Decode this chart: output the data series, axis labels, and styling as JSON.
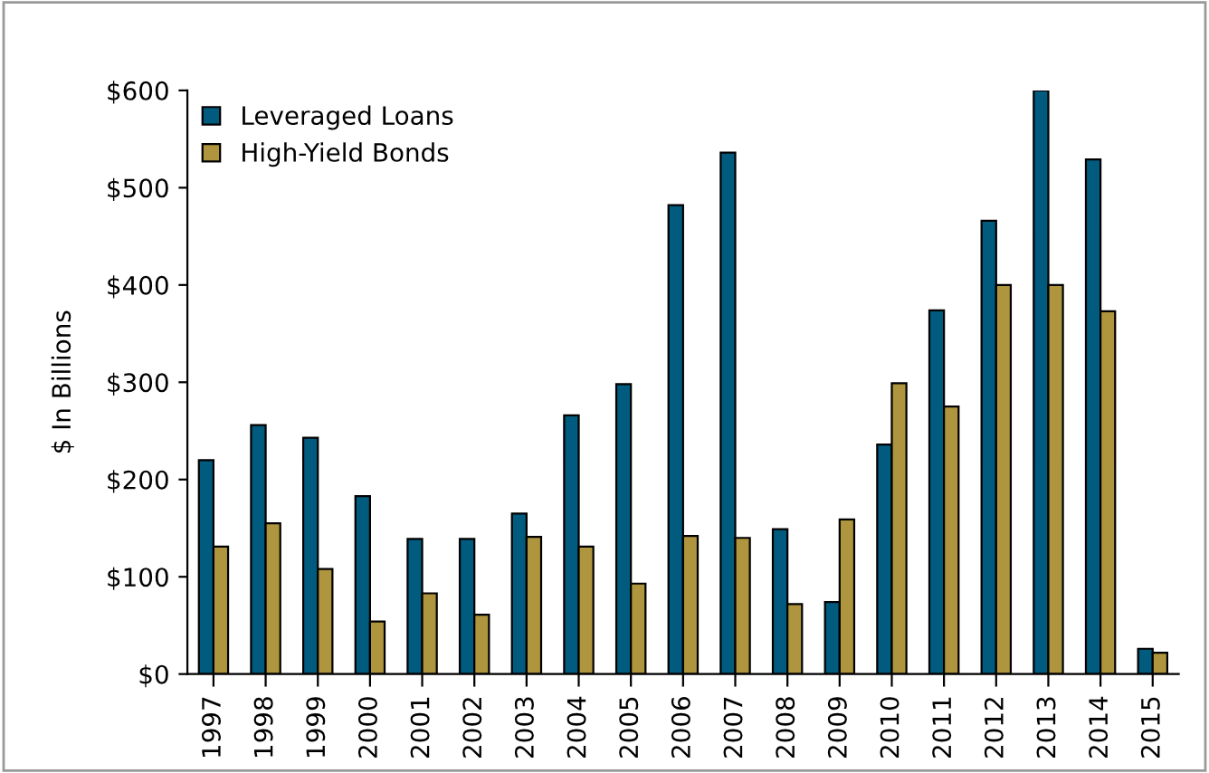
{
  "chart_data": {
    "type": "bar",
    "ylabel": "$ In Billions",
    "categories": [
      "1997",
      "1998",
      "1999",
      "2000",
      "2001",
      "2002",
      "2003",
      "2004",
      "2005",
      "2006",
      "2007",
      "2008",
      "2009",
      "2010",
      "2011",
      "2012",
      "2013",
      "2014",
      "2015"
    ],
    "series": [
      {
        "name": "Leveraged Loans",
        "color": "#005b7f",
        "values": [
          220,
          256,
          243,
          183,
          139,
          139,
          165,
          266,
          298,
          482,
          536,
          149,
          74,
          236,
          374,
          466,
          600,
          529,
          26
        ]
      },
      {
        "name": "High-Yield Bonds",
        "color": "#ae953e",
        "values": [
          131,
          155,
          108,
          54,
          83,
          61,
          141,
          131,
          93,
          142,
          140,
          72,
          159,
          299,
          275,
          400,
          400,
          373,
          22
        ]
      }
    ],
    "ylim": [
      0,
      600
    ],
    "yticks": [
      {
        "value": 0,
        "label": "$0"
      },
      {
        "value": 100,
        "label": "$100"
      },
      {
        "value": 200,
        "label": "$200"
      },
      {
        "value": 300,
        "label": "$300"
      },
      {
        "value": 400,
        "label": "$400"
      },
      {
        "value": 500,
        "label": "$500"
      },
      {
        "value": 600,
        "label": "$600"
      }
    ],
    "grid": false,
    "legend": "top left"
  }
}
